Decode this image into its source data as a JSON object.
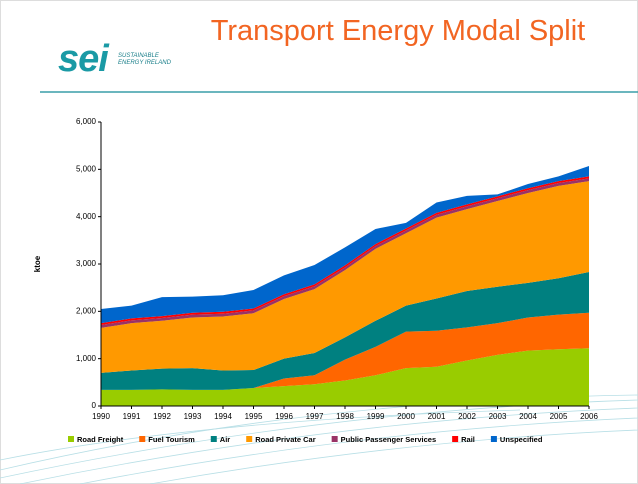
{
  "logo": {
    "mark": "sei",
    "text": "SUSTAINABLE ENERGY IRELAND"
  },
  "chart_data": {
    "type": "stacked_area",
    "title": "Transport Energy Modal Split",
    "ylabel": "ktoe",
    "categories": [
      "1990",
      "1991",
      "1992",
      "1993",
      "1994",
      "1995",
      "1996",
      "1997",
      "1998",
      "1999",
      "2000",
      "2001",
      "2002",
      "2003",
      "2004",
      "2005",
      "2006"
    ],
    "ylim": [
      0,
      6000
    ],
    "yticks": [
      0,
      {
        "value": 1000,
        "label": "1,000"
      },
      {
        "value": 2000,
        "label": "2,000"
      },
      {
        "value": 3000,
        "label": "3,000"
      },
      {
        "value": 4000,
        "label": "4,000"
      },
      {
        "value": 5000,
        "label": "5,000"
      },
      {
        "value": 6000,
        "label": "6,000"
      }
    ],
    "series": [
      {
        "name": "Road Freight",
        "color": "#99cc00",
        "values": [
          340,
          340,
          350,
          340,
          340,
          380,
          420,
          460,
          540,
          650,
          800,
          830,
          960,
          1080,
          1170,
          1200,
          1220
        ]
      },
      {
        "name": "Fuel Tourism",
        "color": "#ff6600",
        "values": [
          0,
          0,
          0,
          0,
          0,
          0,
          160,
          190,
          440,
          600,
          770,
          760,
          700,
          670,
          700,
          730,
          750
        ]
      },
      {
        "name": "Air",
        "color": "#008080",
        "values": [
          360,
          410,
          440,
          460,
          410,
          380,
          420,
          470,
          470,
          550,
          550,
          680,
          770,
          770,
          730,
          770,
          860
        ]
      },
      {
        "name": "Road Private Car",
        "color": "#ff9900",
        "values": [
          950,
          1000,
          1010,
          1070,
          1140,
          1200,
          1260,
          1350,
          1420,
          1520,
          1530,
          1710,
          1730,
          1810,
          1900,
          1950,
          1920
        ]
      },
      {
        "name": "Public Passenger Services",
        "color": "#993366",
        "values": [
          60,
          60,
          60,
          60,
          60,
          60,
          60,
          60,
          60,
          60,
          60,
          60,
          60,
          60,
          60,
          60,
          60
        ]
      },
      {
        "name": "Rail",
        "color": "#ff0000",
        "values": [
          40,
          40,
          40,
          40,
          40,
          40,
          40,
          40,
          40,
          40,
          40,
          40,
          40,
          40,
          40,
          40,
          40
        ]
      },
      {
        "name": "Unspecified",
        "color": "#0066cc",
        "values": [
          300,
          270,
          400,
          340,
          350,
          390,
          400,
          410,
          380,
          320,
          120,
          220,
          180,
          40,
          90,
          100,
          220
        ]
      }
    ]
  }
}
